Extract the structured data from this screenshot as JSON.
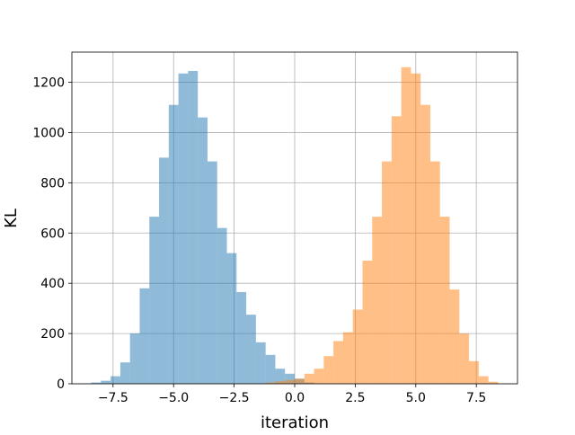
{
  "chart_data": {
    "type": "bar",
    "title": "",
    "xlabel": "iteration",
    "ylabel": "KL",
    "xlim": [
      -9.2,
      9.2
    ],
    "ylim": [
      0,
      1320
    ],
    "grid": true,
    "legend": "none",
    "x_ticks": [
      -7.5,
      -5.0,
      -2.5,
      0.0,
      2.5,
      5.0,
      7.5
    ],
    "x_tick_labels": [
      "−7.5",
      "−5.0",
      "−2.5",
      "0.0",
      "2.5",
      "5.0",
      "7.5"
    ],
    "y_ticks": [
      0,
      200,
      400,
      600,
      800,
      1000,
      1200
    ],
    "y_tick_labels": [
      "0",
      "200",
      "400",
      "600",
      "800",
      "1000",
      "1200"
    ],
    "bin_width": 0.4,
    "series": [
      {
        "color": "#1f77b4",
        "alpha": 0.5,
        "bin_starts": [
          -8.4,
          -8.0,
          -7.6,
          -7.2,
          -6.8,
          -6.4,
          -6.0,
          -5.6,
          -5.2,
          -4.8,
          -4.4,
          -4.0,
          -3.6,
          -3.2,
          -2.8,
          -2.4,
          -2.0,
          -1.6,
          -1.2,
          -0.8,
          -0.4,
          0.0,
          0.4
        ],
        "values": [
          5,
          12,
          30,
          85,
          200,
          380,
          665,
          900,
          1110,
          1235,
          1245,
          1060,
          885,
          620,
          520,
          365,
          275,
          165,
          115,
          60,
          40,
          20,
          5
        ]
      },
      {
        "color": "#ff7f0e",
        "alpha": 0.5,
        "bin_starts": [
          -1.2,
          -0.8,
          -0.4,
          0.0,
          0.4,
          0.8,
          1.2,
          1.6,
          2.0,
          2.4,
          2.8,
          3.2,
          3.6,
          4.0,
          4.4,
          4.8,
          5.2,
          5.6,
          6.0,
          6.4,
          6.8,
          7.2,
          7.6,
          8.0
        ],
        "values": [
          5,
          10,
          15,
          20,
          40,
          60,
          110,
          170,
          205,
          295,
          490,
          665,
          885,
          1065,
          1260,
          1235,
          1110,
          885,
          665,
          375,
          200,
          90,
          30,
          8
        ]
      }
    ]
  }
}
